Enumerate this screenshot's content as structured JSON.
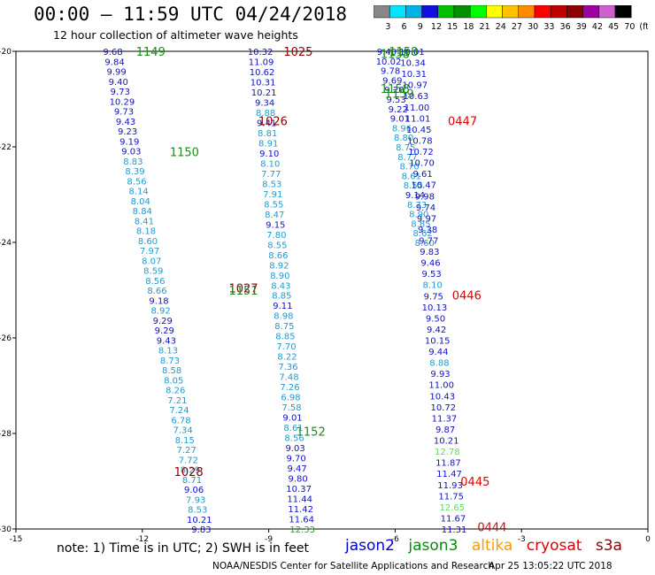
{
  "header": {
    "title": "00:00 – 11:59 UTC 04/24/2018",
    "subtitle": "12 hour collection of altimeter wave heights"
  },
  "colorbar": {
    "labels": [
      "3",
      "6",
      "9",
      "12",
      "15",
      "18",
      "21",
      "24",
      "27",
      "30",
      "33",
      "36",
      "39",
      "42",
      "45",
      "70",
      "(ft)"
    ],
    "colors": [
      "#888888",
      "#00e5ff",
      "#00b3e6",
      "#1010e0",
      "#00c000",
      "#009000",
      "#00ff00",
      "#ffff00",
      "#ffc000",
      "#ff8c00",
      "#ff0000",
      "#c00000",
      "#900000",
      "#a000a0",
      "#d060d0",
      "#000000"
    ]
  },
  "chart_data": {
    "type": "scatter",
    "xlim": [
      -15,
      0
    ],
    "ylim": [
      -30,
      -20
    ],
    "xticks": [
      "-15",
      "-12",
      "-9",
      "-6",
      "-3",
      "0"
    ],
    "yticks": [
      "-20",
      "-22",
      "-24",
      "-26",
      "-28",
      "-30"
    ],
    "swh_colors": {
      "c6": "#1c9cd0",
      "c9": "#1010c8",
      "c12": "#2a9e2a",
      "c15": "#58e058"
    },
    "tracks": [
      {
        "name": "jason2",
        "x0": -12.7,
        "x1": -10.6,
        "ys": [
          -20,
          -30
        ],
        "values": [
          "9.68",
          "9.84",
          "9.99",
          "9.40",
          "9.73",
          "10.29",
          "9.73",
          "9.43",
          "9.23",
          "9.19",
          "9.03",
          "8.83",
          "8.39",
          "8.56",
          "8.14",
          "8.04",
          "8.84",
          "8.41",
          "8.18",
          "8.60",
          "7.97",
          "8.07",
          "8.59",
          "8.56",
          "8.66",
          "9.18",
          "8.92",
          "9.29",
          "9.29",
          "9.43",
          "8.13",
          "8.73",
          "8.58",
          "8.05",
          "8.26",
          "7.21",
          "7.24",
          "6.78",
          "7.34",
          "8.15",
          "7.27",
          "7.72",
          "8.29",
          "8.71",
          "9.06",
          "7.93",
          "8.53",
          "10.21",
          "9.83"
        ]
      },
      {
        "name": "jason2",
        "x0": -9.2,
        "x1": -8.2,
        "ys": [
          -20,
          -30
        ],
        "values": [
          "10.32",
          "11.09",
          "10.62",
          "10.31",
          "10.21",
          "9.34",
          "8.88",
          "9.41",
          "8.81",
          "8.91",
          "9.10",
          "8.10",
          "7.77",
          "8.53",
          "7.91",
          "8.55",
          "8.47",
          "9.15",
          "7.80",
          "8.55",
          "8.66",
          "8.92",
          "8.90",
          "8.43",
          "8.85",
          "9.11",
          "8.98",
          "8.75",
          "8.85",
          "7.70",
          "8.22",
          "7.36",
          "7.48",
          "7.26",
          "6.98",
          "7.58",
          "9.01",
          "8.61",
          "8.56",
          "9.03",
          "9.70",
          "9.47",
          "9.80",
          "10.37",
          "11.44",
          "11.42",
          "11.64",
          "12.33"
        ]
      },
      {
        "name": "jason3",
        "x0": -6.2,
        "x1": -5.3,
        "ys": [
          -20,
          -24
        ],
        "values": [
          "9.40",
          "10.02",
          "9.78",
          "9.69",
          "9.20",
          "9.53",
          "9.22",
          "9.01",
          "8.96",
          "8.80",
          "8.75",
          "8.77",
          "8.70",
          "8.61",
          "8.55",
          "9.14",
          "8.73",
          "8.90",
          "8.85",
          "8.62",
          "8.60"
        ]
      },
      {
        "name": "jason2",
        "x0": -5.6,
        "x1": -4.6,
        "ys": [
          -20,
          -30
        ],
        "values": [
          "10.01",
          "10.34",
          "10.31",
          "10.97",
          "10.63",
          "11.00",
          "11.01",
          "10.45",
          "10.78",
          "10.72",
          "10.70",
          "9.61",
          "10.47",
          "9.98",
          "9.74",
          "9.97",
          "9.38",
          "9.77",
          "9.83",
          "9.46",
          "9.53",
          "8.10",
          "9.75",
          "10.13",
          "9.50",
          "9.42",
          "10.15",
          "9.44",
          "8.88",
          "9.93",
          "11.00",
          "10.43",
          "10.72",
          "11.37",
          "9.87",
          "10.21",
          "12.78",
          "11.87",
          "11.47",
          "11.93",
          "11.75",
          "12.65",
          "11.67",
          "11.31"
        ]
      }
    ],
    "time_labels": [
      {
        "text": "1149",
        "x": -11.8,
        "y": -20.0,
        "sat": "jason3"
      },
      {
        "text": "1025",
        "x": -8.3,
        "y": -20.0,
        "sat": "cryosat"
      },
      {
        "text": "1158",
        "x": -5.8,
        "y": -20.0,
        "sat": "jason3"
      },
      {
        "text": "1138",
        "x": -6.0,
        "y": -20.05,
        "sat": "jason3"
      },
      {
        "text": "1158",
        "x": -6.0,
        "y": -20.78,
        "sat": "jason3"
      },
      {
        "text": "1159",
        "x": -5.9,
        "y": -20.88,
        "sat": "jason3"
      },
      {
        "text": "1026",
        "x": -8.9,
        "y": -21.45,
        "sat": "cryosat"
      },
      {
        "text": "0447",
        "x": -4.4,
        "y": -21.45,
        "sat": "s3a"
      },
      {
        "text": "1150",
        "x": -11.0,
        "y": -22.1,
        "sat": "jason3"
      },
      {
        "text": "1027",
        "x": -9.6,
        "y": -24.95,
        "sat": "cryosat"
      },
      {
        "text": "1151",
        "x": -9.6,
        "y": -25.0,
        "sat": "jason3"
      },
      {
        "text": "0446",
        "x": -4.3,
        "y": -25.1,
        "sat": "s3a"
      },
      {
        "text": "1152",
        "x": -8.0,
        "y": -27.95,
        "sat": "jason3"
      },
      {
        "text": "1028",
        "x": -10.9,
        "y": -28.8,
        "sat": "cryosat"
      },
      {
        "text": "0445",
        "x": -4.1,
        "y": -29.0,
        "sat": "s3a"
      },
      {
        "text": "0444",
        "x": -3.7,
        "y": -29.95,
        "sat": "s3a"
      }
    ],
    "time_colors": {
      "jason3": "#1a8a1a",
      "cryosat": "#8b0000",
      "s3a": "#e00000"
    }
  },
  "footer": {
    "note": "note: 1) Time is in UTC; 2) SWH is in feet",
    "satellites": [
      {
        "name": "jason2",
        "color": "#0000cc"
      },
      {
        "name": "jason3",
        "color": "#009000"
      },
      {
        "name": "altika",
        "color": "#ff9900"
      },
      {
        "name": "cryosat",
        "color": "#e00000"
      },
      {
        "name": "s3a",
        "color": "#8b0000"
      }
    ],
    "credit": "NOAA/NESDIS Center for Satellite Applications and Research",
    "timestamp": "Apr 25 13:05:22 UTC 2018"
  }
}
